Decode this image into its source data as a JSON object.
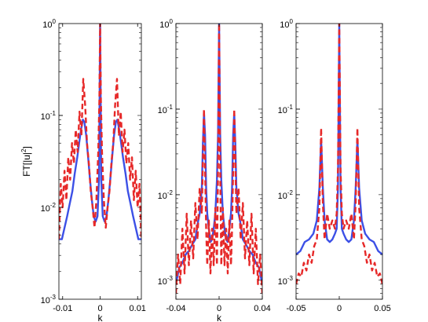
{
  "colors": {
    "solid": "#3c50e6",
    "dashed": "#e62828"
  },
  "chart_data": [
    {
      "type": "line",
      "ylabel": "FT[|u|",
      "ylabel_sup": "2",
      "ylabel_tail": "]",
      "xlabel": "k",
      "yscale": "log",
      "xlim": [
        -0.011,
        0.011
      ],
      "ylim": [
        0.001,
        1
      ],
      "xticks": [
        -0.01,
        0,
        0.01
      ],
      "xtick_labels": [
        "-0.01",
        "0",
        "0.01"
      ],
      "yticks": [
        0.001,
        0.01,
        0.1,
        1
      ],
      "ytick_bases": [
        "10",
        "10",
        "10",
        "10"
      ],
      "ytick_exps": [
        "-3",
        "-2",
        "-1",
        "0"
      ],
      "series": [
        {
          "style": "solid",
          "x": [
            -0.011,
            -0.0102,
            -0.0095,
            -0.0088,
            -0.0081,
            -0.0074,
            -0.0068,
            -0.0061,
            -0.0056,
            -0.0051,
            -0.0046,
            -0.0042,
            -0.0037,
            -0.0032,
            -0.0027,
            -0.0022,
            -0.0017,
            -0.0012,
            -0.0007,
            -0.0003,
            0,
            0.0003,
            0.0007,
            0.0012,
            0.0017,
            0.0022,
            0.0027,
            0.0032,
            0.0037,
            0.0042,
            0.0046,
            0.0051,
            0.0056,
            0.0061,
            0.0068,
            0.0074,
            0.0081,
            0.0088,
            0.0095,
            0.0102,
            0.011
          ],
          "y": [
            0.0045,
            0.0045,
            0.006,
            0.008,
            0.011,
            0.015,
            0.023,
            0.035,
            0.05,
            0.07,
            0.09,
            0.085,
            0.06,
            0.035,
            0.02,
            0.012,
            0.008,
            0.007,
            0.008,
            0.02,
            1,
            0.02,
            0.008,
            0.007,
            0.008,
            0.012,
            0.02,
            0.035,
            0.06,
            0.085,
            0.09,
            0.07,
            0.05,
            0.035,
            0.023,
            0.015,
            0.011,
            0.008,
            0.006,
            0.0045,
            0.0045
          ]
        },
        {
          "style": "dashed",
          "x": [
            -0.011,
            -0.0105,
            -0.01,
            -0.0095,
            -0.009,
            -0.0085,
            -0.008,
            -0.0075,
            -0.007,
            -0.0065,
            -0.006,
            -0.0055,
            -0.005,
            -0.0045,
            -0.004,
            -0.0035,
            -0.003,
            -0.0025,
            -0.002,
            -0.0015,
            -0.001,
            -0.0005,
            -0.0002,
            0,
            0.0002,
            0.0005,
            0.001,
            0.0015,
            0.002,
            0.0025,
            0.003,
            0.0035,
            0.004,
            0.0045,
            0.005,
            0.0055,
            0.006,
            0.0065,
            0.007,
            0.0075,
            0.008,
            0.0085,
            0.009,
            0.0095,
            0.01,
            0.0105,
            0.011
          ],
          "y": [
            0.0045,
            0.018,
            0.01,
            0.025,
            0.012,
            0.035,
            0.02,
            0.05,
            0.03,
            0.07,
            0.04,
            0.11,
            0.06,
            0.25,
            0.13,
            0.05,
            0.03,
            0.015,
            0.01,
            0.006,
            0.012,
            0.04,
            0.15,
            1,
            0.15,
            0.04,
            0.012,
            0.006,
            0.01,
            0.015,
            0.03,
            0.05,
            0.13,
            0.25,
            0.06,
            0.11,
            0.04,
            0.07,
            0.03,
            0.05,
            0.02,
            0.035,
            0.012,
            0.025,
            0.01,
            0.018,
            0.0045
          ]
        }
      ]
    },
    {
      "type": "line",
      "xlabel": "k",
      "yscale": "log",
      "xlim": [
        -0.04,
        0.04
      ],
      "ylim": [
        0.0006,
        1
      ],
      "xticks": [
        -0.04,
        0,
        0.04
      ],
      "xtick_labels": [
        "-0.04",
        "0",
        "0.04"
      ],
      "yticks": [
        0.001,
        0.01,
        0.1,
        1
      ],
      "ytick_bases": [
        "10",
        "10",
        "10",
        "10"
      ],
      "ytick_exps": [
        "-3",
        "-2",
        "-1",
        "0"
      ],
      "series": [
        {
          "style": "solid",
          "x": [
            -0.04,
            -0.037,
            -0.034,
            -0.031,
            -0.028,
            -0.025,
            -0.022,
            -0.02,
            -0.018,
            -0.016,
            -0.015,
            -0.014,
            -0.013,
            -0.012,
            -0.011,
            -0.0095,
            -0.008,
            -0.0065,
            -0.005,
            -0.0035,
            -0.002,
            -0.001,
            0,
            0.001,
            0.002,
            0.0035,
            0.005,
            0.0065,
            0.008,
            0.0095,
            0.011,
            0.012,
            0.013,
            0.014,
            0.015,
            0.016,
            0.018,
            0.02,
            0.022,
            0.025,
            0.028,
            0.031,
            0.034,
            0.037,
            0.04
          ],
          "y": [
            0.0009,
            0.0014,
            0.0016,
            0.002,
            0.0022,
            0.0026,
            0.003,
            0.0045,
            0.006,
            0.012,
            0.04,
            0.09,
            0.05,
            0.012,
            0.006,
            0.004,
            0.0028,
            0.003,
            0.004,
            0.006,
            0.015,
            0.05,
            1,
            0.05,
            0.015,
            0.006,
            0.004,
            0.003,
            0.0028,
            0.004,
            0.006,
            0.012,
            0.05,
            0.09,
            0.04,
            0.012,
            0.006,
            0.0045,
            0.003,
            0.0026,
            0.0022,
            0.002,
            0.0016,
            0.0014,
            0.0009
          ]
        },
        {
          "style": "dashed",
          "x": [
            -0.04,
            -0.038,
            -0.036,
            -0.034,
            -0.032,
            -0.03,
            -0.028,
            -0.026,
            -0.024,
            -0.022,
            -0.02,
            -0.018,
            -0.016,
            -0.015,
            -0.014,
            -0.013,
            -0.012,
            -0.011,
            -0.0095,
            -0.008,
            -0.0065,
            -0.005,
            -0.0035,
            -0.002,
            -0.001,
            0,
            0.001,
            0.002,
            0.0035,
            0.005,
            0.0065,
            0.008,
            0.0095,
            0.011,
            0.012,
            0.013,
            0.014,
            0.015,
            0.016,
            0.018,
            0.02,
            0.022,
            0.024,
            0.026,
            0.028,
            0.03,
            0.032,
            0.034,
            0.036,
            0.038,
            0.04
          ],
          "y": [
            0.0007,
            0.002,
            0.0009,
            0.004,
            0.0012,
            0.006,
            0.0015,
            0.005,
            0.0018,
            0.008,
            0.003,
            0.012,
            0.006,
            0.025,
            0.1,
            0.02,
            0.004,
            0.0015,
            0.005,
            0.0012,
            0.004,
            0.0015,
            0.007,
            0.0015,
            0.02,
            1,
            0.02,
            0.0015,
            0.007,
            0.0015,
            0.004,
            0.0012,
            0.005,
            0.0015,
            0.004,
            0.02,
            0.1,
            0.025,
            0.006,
            0.012,
            0.003,
            0.008,
            0.0018,
            0.005,
            0.0015,
            0.006,
            0.0012,
            0.004,
            0.0009,
            0.002,
            0.0007
          ]
        }
      ]
    },
    {
      "type": "line",
      "yscale": "log",
      "xlim": [
        -0.05,
        0.05
      ],
      "ylim": [
        0.0006,
        1
      ],
      "xticks": [
        -0.05,
        0,
        0.05
      ],
      "xtick_labels": [
        "-0.05",
        "0",
        "0.05"
      ],
      "yticks": [
        0.001,
        0.01,
        0.1,
        1
      ],
      "ytick_bases": [
        "10",
        "10",
        "10",
        "10"
      ],
      "ytick_exps": [
        "-3",
        "-2",
        "-1",
        "0"
      ],
      "series": [
        {
          "style": "solid",
          "x": [
            -0.05,
            -0.045,
            -0.04,
            -0.035,
            -0.03,
            -0.026,
            -0.023,
            -0.021,
            -0.019,
            -0.017,
            -0.014,
            -0.011,
            -0.008,
            -0.005,
            -0.003,
            -0.0015,
            0,
            0.0015,
            0.003,
            0.005,
            0.008,
            0.011,
            0.014,
            0.017,
            0.019,
            0.021,
            0.023,
            0.026,
            0.03,
            0.035,
            0.04,
            0.045,
            0.05
          ],
          "y": [
            0.002,
            0.0022,
            0.0028,
            0.003,
            0.0035,
            0.005,
            0.012,
            0.045,
            0.012,
            0.005,
            0.003,
            0.0028,
            0.003,
            0.0035,
            0.004,
            0.012,
            1,
            0.012,
            0.004,
            0.0035,
            0.003,
            0.0028,
            0.003,
            0.005,
            0.012,
            0.045,
            0.012,
            0.005,
            0.0035,
            0.003,
            0.0028,
            0.0022,
            0.002
          ]
        },
        {
          "style": "dashed",
          "x": [
            -0.05,
            -0.047,
            -0.044,
            -0.041,
            -0.038,
            -0.035,
            -0.032,
            -0.029,
            -0.026,
            -0.023,
            -0.021,
            -0.019,
            -0.017,
            -0.014,
            -0.011,
            -0.008,
            -0.005,
            -0.003,
            -0.0015,
            0,
            0.0015,
            0.003,
            0.005,
            0.008,
            0.011,
            0.014,
            0.017,
            0.019,
            0.021,
            0.023,
            0.026,
            0.029,
            0.032,
            0.035,
            0.038,
            0.041,
            0.044,
            0.047,
            0.05
          ],
          "y": [
            0.0009,
            0.0012,
            0.0011,
            0.0016,
            0.0013,
            0.002,
            0.0016,
            0.0025,
            0.003,
            0.007,
            0.06,
            0.008,
            0.003,
            0.006,
            0.004,
            0.005,
            0.004,
            0.006,
            0.02,
            1,
            0.02,
            0.006,
            0.004,
            0.005,
            0.004,
            0.006,
            0.003,
            0.008,
            0.06,
            0.007,
            0.003,
            0.0025,
            0.0016,
            0.002,
            0.0013,
            0.0016,
            0.0011,
            0.0012,
            0.0009
          ]
        }
      ]
    }
  ]
}
